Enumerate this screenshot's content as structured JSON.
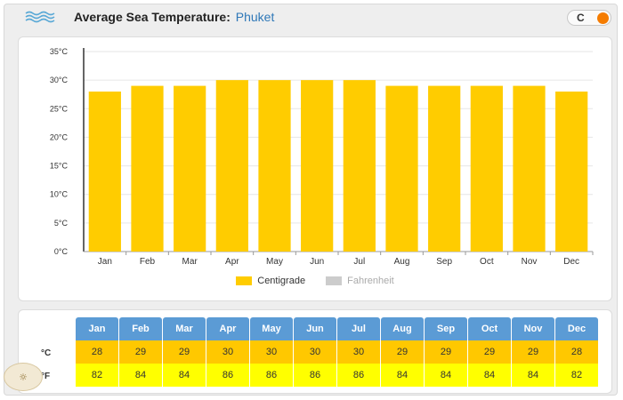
{
  "header": {
    "title": "Average Sea Temperature:",
    "location": "Phuket",
    "toggle_label": "C",
    "icon": "wave-icon"
  },
  "chart_data": {
    "type": "bar",
    "categories": [
      "Jan",
      "Feb",
      "Mar",
      "Apr",
      "May",
      "Jun",
      "Jul",
      "Aug",
      "Sep",
      "Oct",
      "Nov",
      "Dec"
    ],
    "series": [
      {
        "name": "Centigrade",
        "values": [
          28,
          29,
          29,
          30,
          30,
          30,
          30,
          29,
          29,
          29,
          29,
          28
        ]
      }
    ],
    "ylim": [
      0,
      35
    ],
    "yticks": [
      "0°C",
      "5°C",
      "10°C",
      "15°C",
      "20°C",
      "25°C",
      "30°C",
      "35°C"
    ],
    "grid": true,
    "legend": [
      {
        "label": "Centigrade",
        "color": "#ffcc00",
        "active": true
      },
      {
        "label": "Fahrenheit",
        "color": "#cccccc",
        "active": false
      }
    ],
    "legend_position": "bottom-center",
    "bar_color": "#ffcc00"
  },
  "table": {
    "months": [
      "Jan",
      "Feb",
      "Mar",
      "Apr",
      "May",
      "Jun",
      "Jul",
      "Aug",
      "Sep",
      "Oct",
      "Nov",
      "Dec"
    ],
    "celsius_label": "°C",
    "fahrenheit_label": "°F",
    "celsius": [
      "28",
      "29",
      "29",
      "30",
      "30",
      "30",
      "30",
      "29",
      "29",
      "29",
      "29",
      "28"
    ],
    "fahrenheit": [
      "82",
      "84",
      "84",
      "86",
      "86",
      "86",
      "86",
      "84",
      "84",
      "84",
      "84",
      "82"
    ]
  },
  "colors": {
    "header_blue": "#5b9bd5",
    "celsius_row": "#ffc800",
    "fahrenheit_row": "#ffff00",
    "toggle_knob": "#f57c00"
  }
}
